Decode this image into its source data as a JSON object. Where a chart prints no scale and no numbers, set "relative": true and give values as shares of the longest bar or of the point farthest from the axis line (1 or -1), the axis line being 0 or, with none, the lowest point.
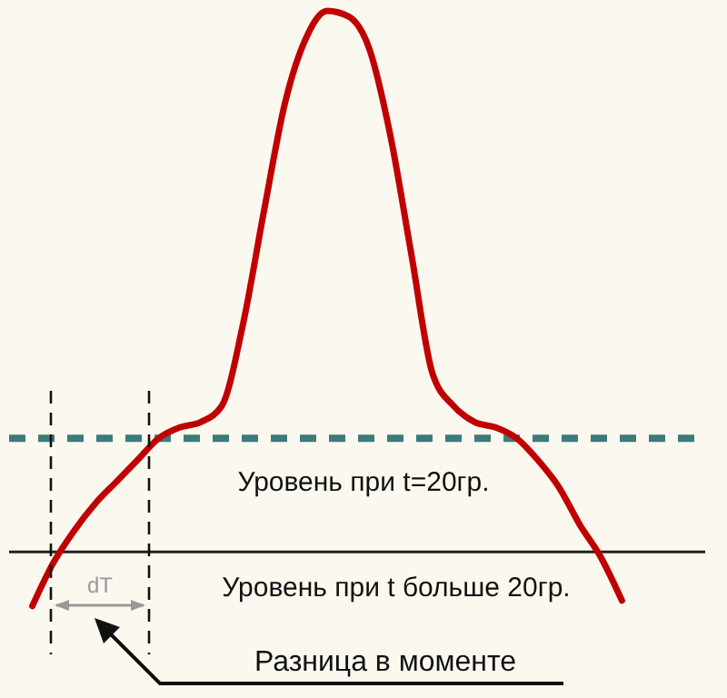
{
  "chart_data": {
    "type": "line",
    "relative": true,
    "categories": [
      null,
      null,
      null,
      null,
      null,
      null,
      null,
      null,
      null,
      null,
      null,
      null,
      null,
      null,
      null,
      null,
      null,
      null,
      null,
      null,
      null,
      null,
      null,
      null,
      null,
      null,
      null,
      null,
      null
    ],
    "series": [
      {
        "color": "#c00000",
        "values": [
          -0.1,
          -0.02,
          0.04,
          0.09,
          0.13,
          0.17,
          0.21,
          0.23,
          0.24,
          0.27,
          0.42,
          0.63,
          0.83,
          0.95,
          1.0,
          0.99,
          0.93,
          0.77,
          0.55,
          0.33,
          0.27,
          0.24,
          0.23,
          0.21,
          0.17,
          0.12,
          0.05,
          -0.01,
          -0.09
        ]
      }
    ],
    "ref_lines": [
      {
        "axis": "y",
        "value": 0.21,
        "color": "#3d7a7a",
        "line_style": "dashed"
      },
      {
        "axis": "y",
        "value": 0,
        "color": "#222222",
        "line_style": "solid"
      }
    ],
    "annotations": [
      "Уровень при t=20гр.",
      "Уровень при t больше 20гр.",
      "dT",
      "Разница в моменте"
    ],
    "marker": "none"
  }
}
